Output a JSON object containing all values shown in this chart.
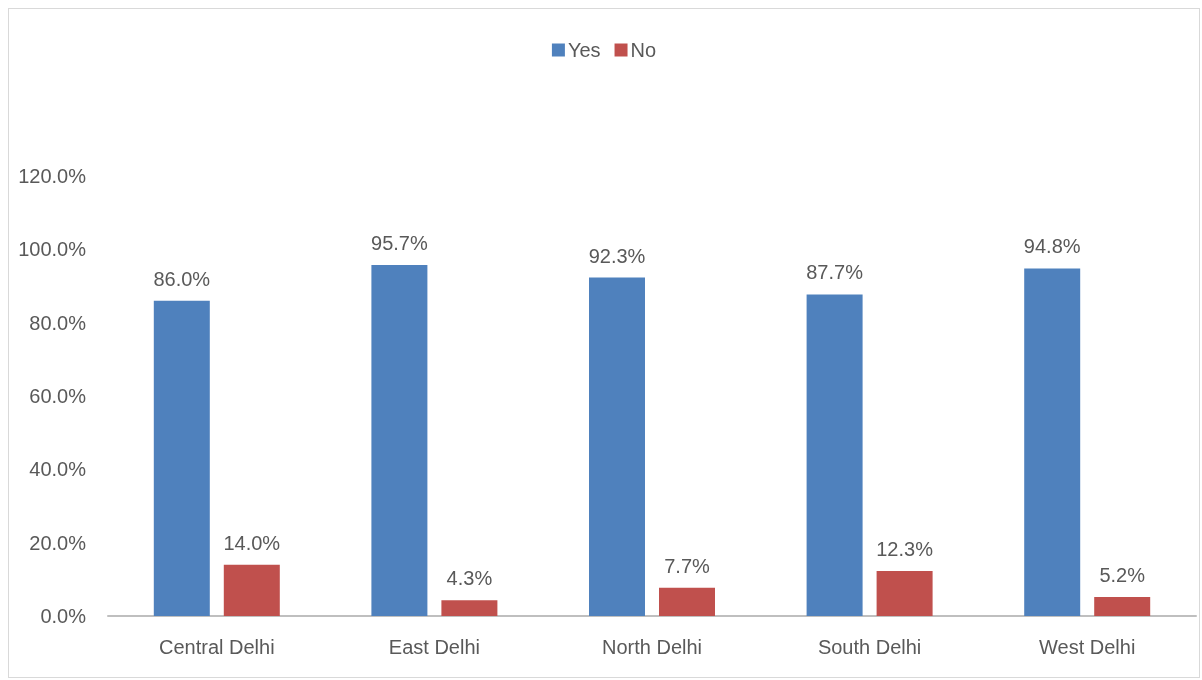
{
  "chart_data": {
    "type": "bar",
    "categories": [
      "Central Delhi",
      "East Delhi",
      "North Delhi",
      "South Delhi",
      "West Delhi"
    ],
    "series": [
      {
        "name": "Yes",
        "color": "#4f81bd",
        "values": [
          86.0,
          95.7,
          92.3,
          87.7,
          94.8
        ],
        "value_labels": [
          "86.0%",
          "95.7%",
          "92.3%",
          "87.7%",
          "94.8%"
        ]
      },
      {
        "name": "No",
        "color": "#c0504d",
        "values": [
          14.0,
          4.3,
          7.7,
          12.3,
          5.2
        ],
        "value_labels": [
          "14.0%",
          "4.3%",
          "7.7%",
          "12.3%",
          "5.2%"
        ]
      }
    ],
    "ylim": [
      0,
      120
    ],
    "yticks": [
      {
        "value": 0,
        "label": "0.0%"
      },
      {
        "value": 20,
        "label": "20.0%"
      },
      {
        "value": 40,
        "label": "40.0%"
      },
      {
        "value": 60,
        "label": "60.0%"
      },
      {
        "value": 80,
        "label": "80.0%"
      },
      {
        "value": 100,
        "label": "100.0%"
      },
      {
        "value": 120,
        "label": "120.0%"
      }
    ],
    "grid": false,
    "legend": "top"
  }
}
